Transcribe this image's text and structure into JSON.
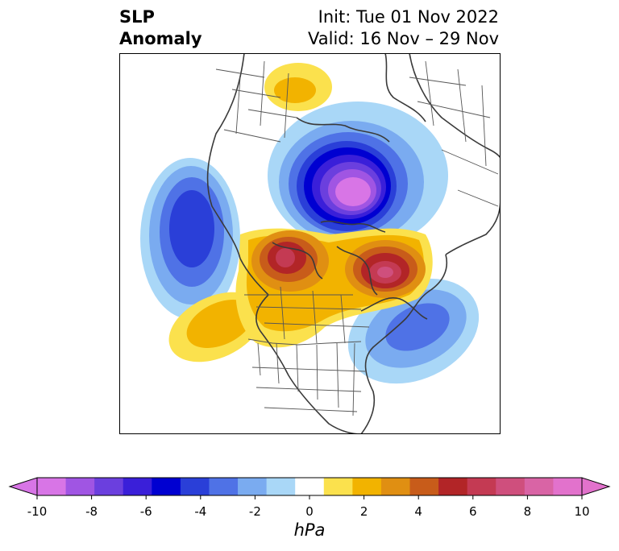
{
  "title": {
    "left_line1": "SLP",
    "left_line2": "Anomaly",
    "right_line1": "Init: Tue 01 Nov 2022",
    "right_line2": "Valid: 16 Nov – 29 Nov"
  },
  "colorbar": {
    "unit": "hPa",
    "tick_labels": [
      "-10",
      "-8",
      "-6",
      "-4",
      "-2",
      "0",
      "2",
      "4",
      "6",
      "8",
      "10"
    ],
    "levels": [
      -10,
      -9,
      -8,
      -7,
      -6,
      -5,
      -4,
      -3,
      -2,
      -1,
      1,
      2,
      3,
      4,
      5,
      6,
      7,
      8,
      9,
      10
    ],
    "colors": [
      "#d875e6",
      "#a055e3",
      "#6b3fde",
      "#3a1fd9",
      "#0000d1",
      "#2a3fd8",
      "#4f72e6",
      "#7aabf0",
      "#a9d7f7",
      "#ffffff",
      "#fbe14d",
      "#f2b300",
      "#e08f12",
      "#c85c1a",
      "#b22527",
      "#c43a53",
      "#cf4f7d",
      "#d964a5",
      "#e272cc"
    ],
    "extend": "both"
  },
  "map_features": {
    "projection": "polar-stereographic-north",
    "anomaly_centers": [
      {
        "label": "negative-arctic",
        "sign": "negative",
        "peak_hpa": -10
      },
      {
        "label": "negative-north-pacific",
        "sign": "negative",
        "peak_hpa": -5
      },
      {
        "label": "negative-north-atlantic",
        "sign": "negative",
        "peak_hpa": -4
      },
      {
        "label": "positive-alaska-yukon",
        "sign": "positive",
        "peak_hpa": 7
      },
      {
        "label": "positive-greenland",
        "sign": "positive",
        "peak_hpa": 7
      },
      {
        "label": "positive-eastern-europe",
        "sign": "positive",
        "peak_hpa": 2
      },
      {
        "label": "positive-gulf-of-alaska",
        "sign": "positive",
        "peak_hpa": 3
      }
    ]
  }
}
